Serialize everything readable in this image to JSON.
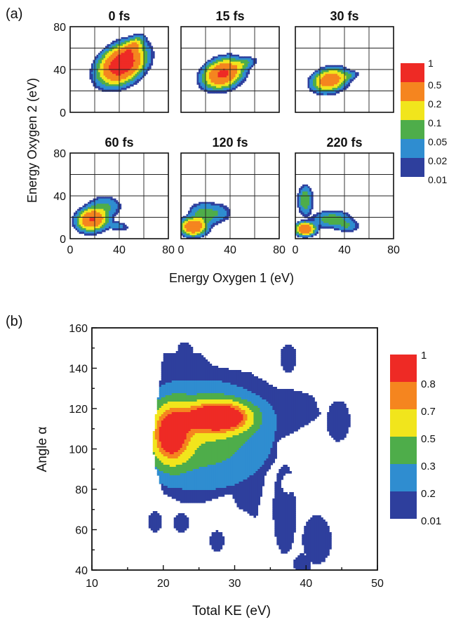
{
  "chart_data": [
    {
      "panel_label": "(a)",
      "type": "heatmap",
      "xlabel": "Energy Oxygen 1 (eV)",
      "ylabel": "Energy Oxygen 2 (eV)",
      "xlim": [
        0,
        80
      ],
      "ylim": [
        0,
        80
      ],
      "x_ticks": [
        "0",
        "40",
        "80"
      ],
      "y_ticks": [
        "0",
        "40",
        "80"
      ],
      "grid": true,
      "colorbar": {
        "labels": [
          "1",
          "0.5",
          "0.2",
          "0.1",
          "0.05",
          "0.02",
          "0.01"
        ],
        "colors": [
          "#ee2a25",
          "#f5851f",
          "#f1e51c",
          "#4ead4a",
          "#2f8dd0",
          "#2e3f9d",
          "#2e3f9d"
        ]
      },
      "panels": [
        {
          "title": "0 fs",
          "blobs": [
            {
              "cx": 42,
              "cy": 45,
              "sx": 10,
              "sy": 7,
              "rot": 45,
              "amp": 1.0
            },
            {
              "cx": 50,
              "cy": 60,
              "sx": 6,
              "sy": 3,
              "rot": 50,
              "amp": 0.25
            }
          ]
        },
        {
          "title": "15 fs",
          "blobs": [
            {
              "cx": 34,
              "cy": 36,
              "sx": 8,
              "sy": 6,
              "rot": 30,
              "amp": 0.6
            },
            {
              "cx": 50,
              "cy": 45,
              "sx": 6,
              "sy": 2.5,
              "rot": 20,
              "amp": 0.07
            }
          ]
        },
        {
          "title": "30 fs",
          "blobs": [
            {
              "cx": 28,
              "cy": 30,
              "sx": 7,
              "sy": 5,
              "rot": 20,
              "amp": 0.4
            },
            {
              "cx": 42,
              "cy": 34,
              "sx": 5,
              "sy": 2,
              "rot": 15,
              "amp": 0.05
            }
          ]
        },
        {
          "title": "60 fs",
          "blobs": [
            {
              "cx": 18,
              "cy": 18,
              "sx": 6,
              "sy": 5,
              "rot": 20,
              "amp": 0.55
            },
            {
              "cx": 28,
              "cy": 30,
              "sx": 7,
              "sy": 5,
              "rot": 0,
              "amp": 0.06
            },
            {
              "cx": 38,
              "cy": 12,
              "sx": 6,
              "sy": 2.5,
              "rot": -10,
              "amp": 0.03
            }
          ]
        },
        {
          "title": "120 fs",
          "blobs": [
            {
              "cx": 10,
              "cy": 11,
              "sx": 5,
              "sy": 4,
              "rot": 0,
              "amp": 0.5
            },
            {
              "cx": 18,
              "cy": 22,
              "sx": 6,
              "sy": 6,
              "rot": 0,
              "amp": 0.08
            },
            {
              "cx": 30,
              "cy": 24,
              "sx": 6,
              "sy": 5,
              "rot": 0,
              "amp": 0.04
            }
          ]
        },
        {
          "title": "220 fs",
          "blobs": [
            {
              "cx": 8,
              "cy": 9,
              "sx": 4,
              "sy": 3,
              "rot": 0,
              "amp": 0.5
            },
            {
              "cx": 8,
              "cy": 36,
              "sx": 3,
              "sy": 7,
              "rot": 0,
              "amp": 0.1
            },
            {
              "cx": 30,
              "cy": 18,
              "sx": 8,
              "sy": 4,
              "rot": 0,
              "amp": 0.09
            },
            {
              "cx": 42,
              "cy": 12,
              "sx": 5,
              "sy": 3,
              "rot": 0,
              "amp": 0.05
            }
          ]
        }
      ]
    },
    {
      "panel_label": "(b)",
      "type": "heatmap",
      "xlabel": "Total KE (eV)",
      "ylabel": "Angle α",
      "xlim": [
        10,
        50
      ],
      "ylim": [
        40,
        160
      ],
      "x_ticks": [
        "10",
        "20",
        "30",
        "40",
        "50"
      ],
      "y_ticks": [
        "40",
        "60",
        "80",
        "100",
        "120",
        "140",
        "160"
      ],
      "grid": false,
      "colorbar": {
        "labels": [
          "1",
          "0.8",
          "0.7",
          "0.5",
          "0.3",
          "0.2",
          "0.01"
        ],
        "colors": [
          "#ee2a25",
          "#f5851f",
          "#f1e51c",
          "#4ead4a",
          "#2f8dd0",
          "#2e3f9d",
          "#2e3f9d"
        ]
      },
      "blobs": [
        {
          "cx": 21,
          "cy": 107,
          "sx": 1.8,
          "sy": 10,
          "rot": 0,
          "amp": 0.78
        },
        {
          "cx": 27.8,
          "cy": 116,
          "sx": 3,
          "sy": 5,
          "rot": 0,
          "amp": 1.0
        },
        {
          "cx": 25,
          "cy": 108,
          "sx": 7,
          "sy": 18,
          "rot": 0,
          "amp": 0.4
        },
        {
          "cx": 28,
          "cy": 100,
          "sx": 10,
          "sy": 40,
          "rot": 0,
          "amp": 0.12
        }
      ],
      "islands": [
        {
          "x": 23,
          "y": 146,
          "rx": 1.2,
          "ry": 7
        },
        {
          "x": 37.5,
          "y": 145,
          "rx": 1.1,
          "ry": 7
        },
        {
          "x": 44.5,
          "y": 114,
          "rx": 1.6,
          "ry": 10
        },
        {
          "x": 18.8,
          "y": 64,
          "rx": 1.0,
          "ry": 5
        },
        {
          "x": 22.5,
          "y": 63.5,
          "rx": 1.0,
          "ry": 5
        },
        {
          "x": 27.5,
          "y": 54.5,
          "rx": 1.0,
          "ry": 5
        },
        {
          "x": 37,
          "y": 70,
          "rx": 1.6,
          "ry": 22
        },
        {
          "x": 41.5,
          "y": 55,
          "rx": 2.0,
          "ry": 12
        },
        {
          "x": 39.5,
          "y": 43,
          "rx": 1.2,
          "ry": 5
        }
      ],
      "holes": [
        {
          "x": 38,
          "y": 97,
          "rx": 1.0,
          "ry": 4
        },
        {
          "x": 37.5,
          "y": 83,
          "rx": 1.0,
          "ry": 5
        },
        {
          "x": 39,
          "y": 80,
          "rx": 1.0,
          "ry": 4
        }
      ]
    }
  ]
}
